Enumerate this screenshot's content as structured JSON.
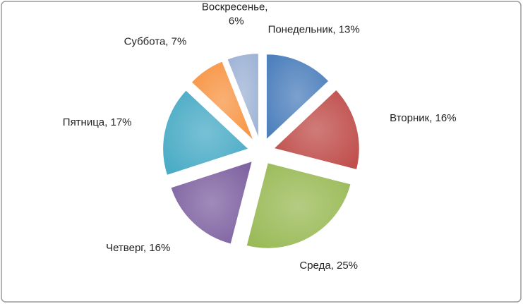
{
  "chart_data": {
    "type": "pie",
    "values": [
      13,
      16,
      25,
      16,
      17,
      7,
      6
    ],
    "value_labels": [
      "Понедельник, 13%",
      "Вторник, 16%",
      "Среда, 25%",
      "Четверг, 16%",
      "Пятница, 17%",
      "Суббота, 7%",
      "Воскресенье, 6%"
    ],
    "colors": [
      "#4f81bd",
      "#c0504d",
      "#9bbb59",
      "#8064a2",
      "#4bacc6",
      "#f79646",
      "#9fb4d6"
    ]
  }
}
